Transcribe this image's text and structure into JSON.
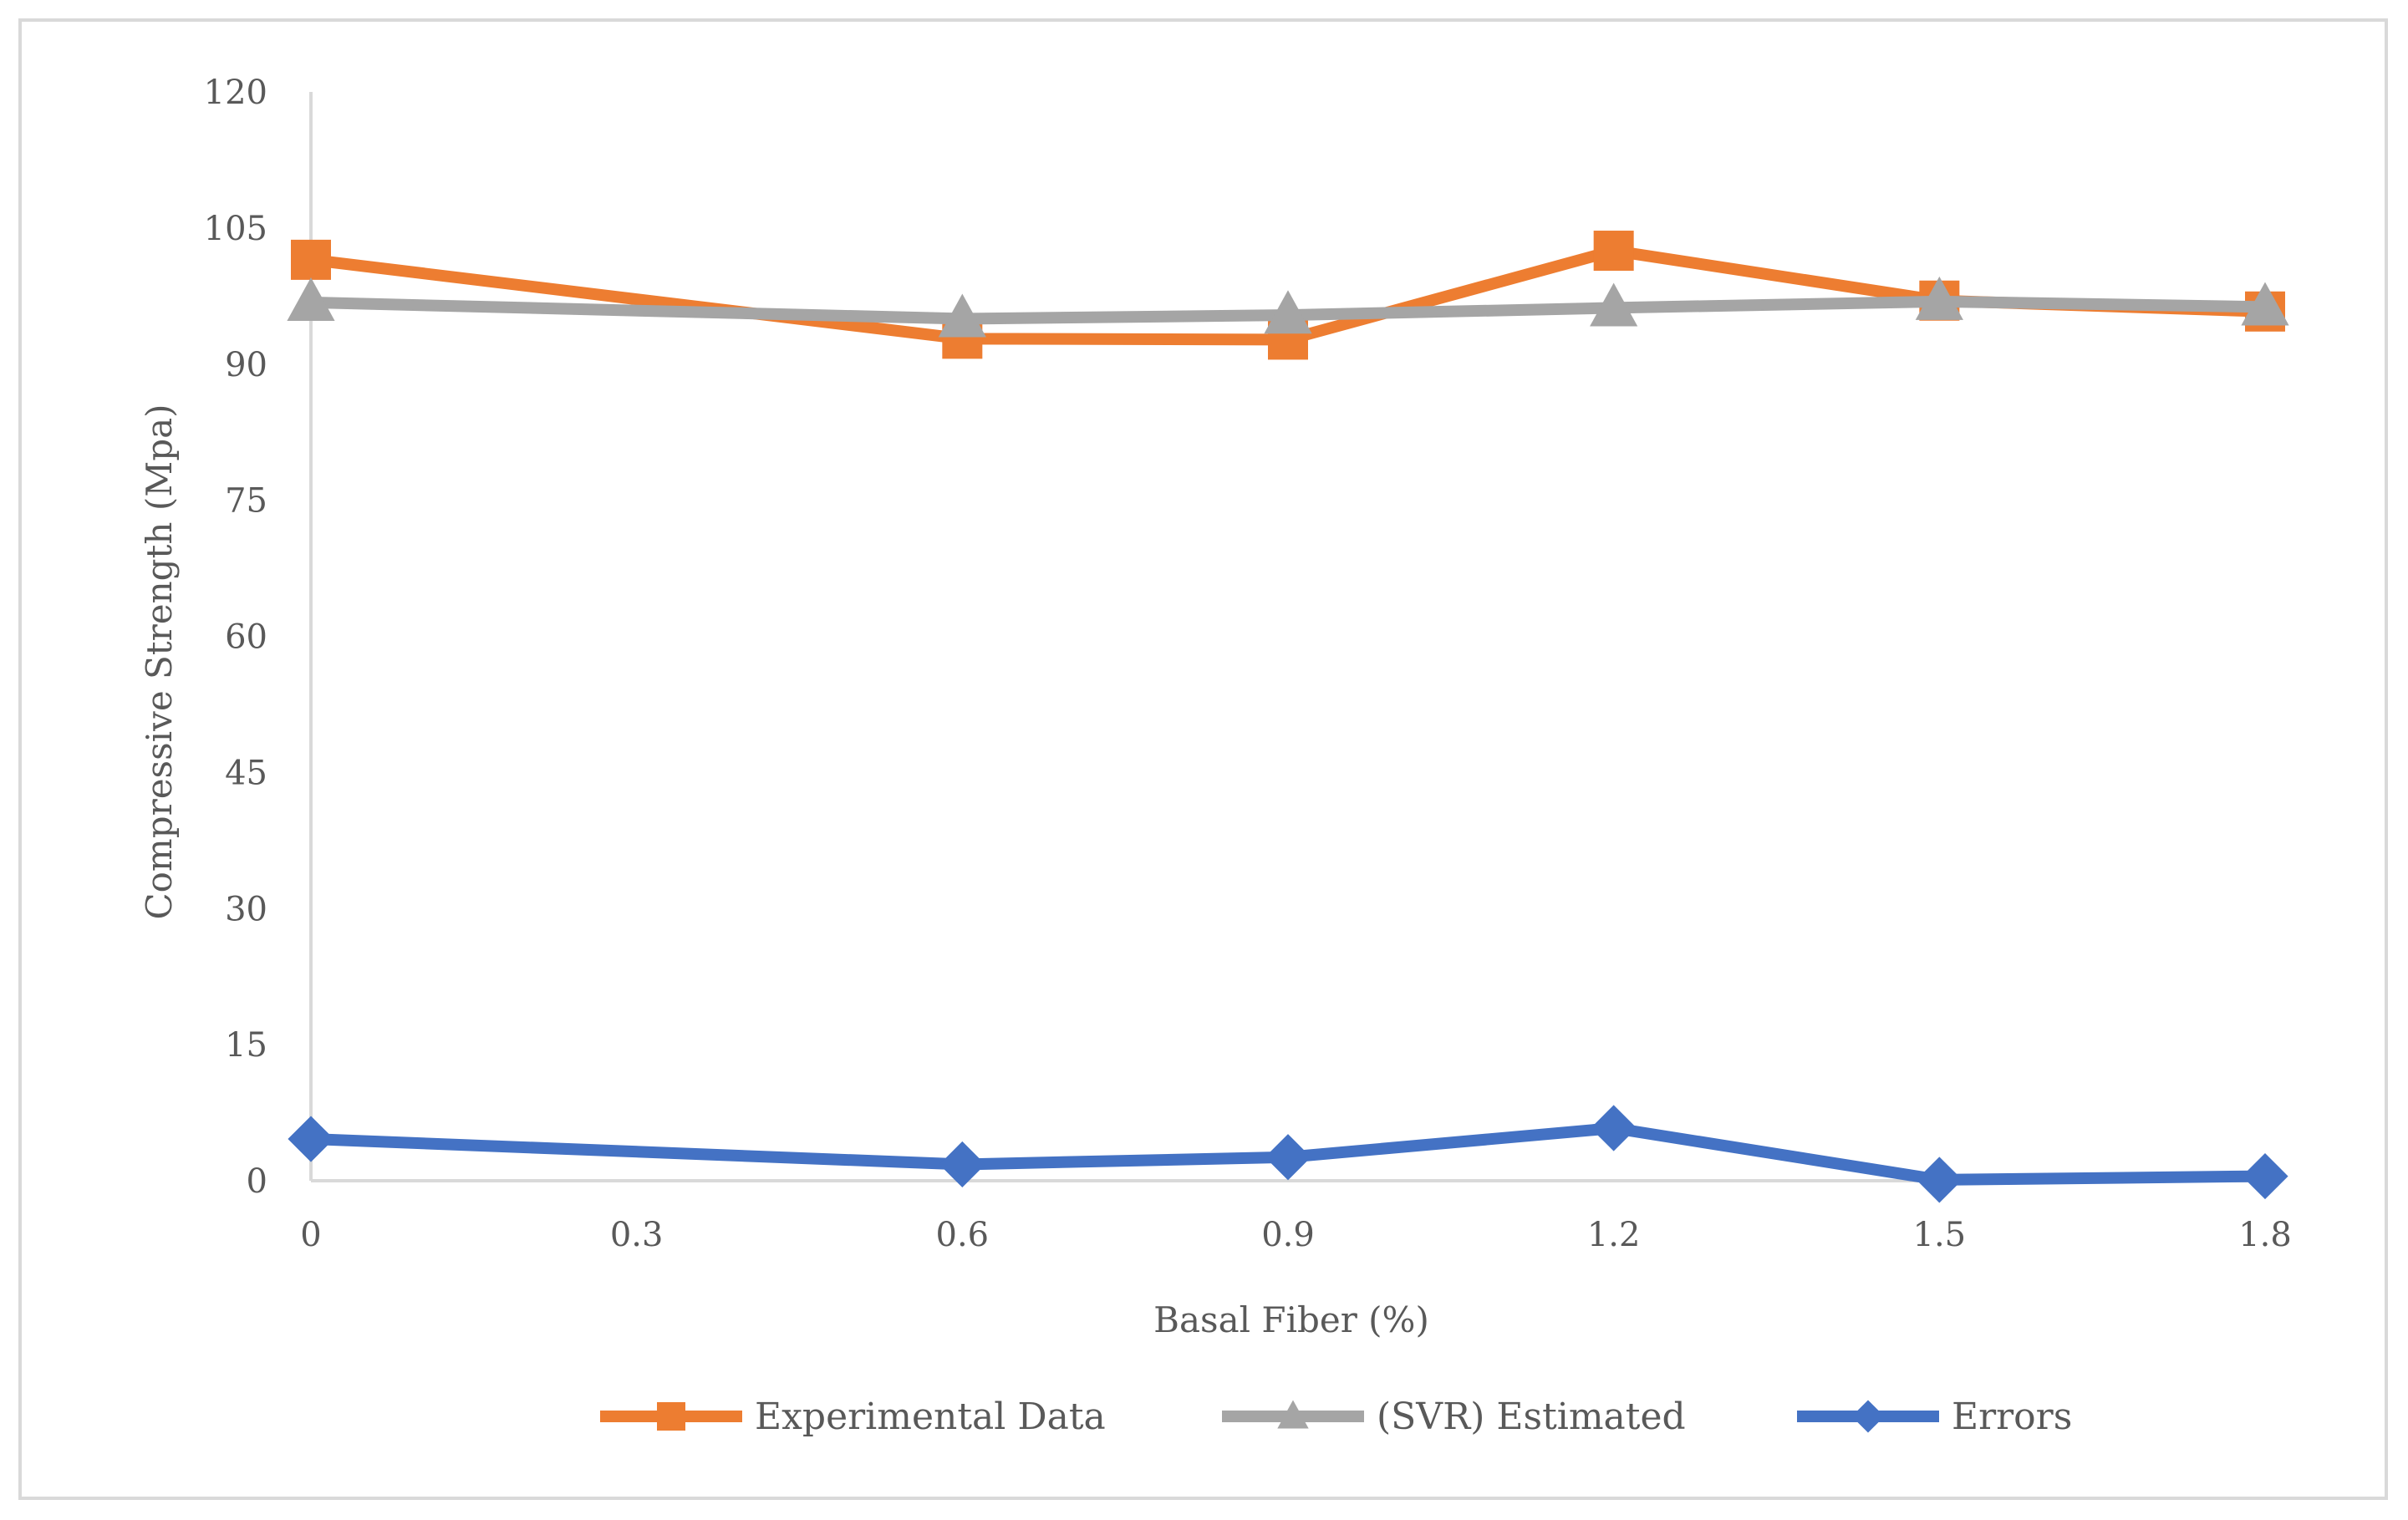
{
  "chart_data": {
    "type": "line",
    "title": "",
    "xlabel": "Basal Fiber (%)",
    "ylabel": "Compressive Strength (Mpa)",
    "xlim": [
      0,
      1.8
    ],
    "ylim": [
      0,
      120
    ],
    "x_ticks": [
      "0",
      "0.3",
      "0.6",
      "0.9",
      "1.2",
      "1.5",
      "1.8"
    ],
    "y_ticks": [
      "0",
      "15",
      "30",
      "45",
      "60",
      "75",
      "90",
      "105",
      "120"
    ],
    "grid": false,
    "legend_position": "bottom",
    "series": [
      {
        "name": "Experimental Data",
        "color": "#ED7D31",
        "marker": "square",
        "x": [
          0,
          0.6,
          0.9,
          1.2,
          1.5,
          1.8
        ],
        "values": [
          101.5,
          92.8,
          92.7,
          102.5,
          97.0,
          95.8
        ]
      },
      {
        "name": "(SVR) Estimated",
        "color": "#A5A5A5",
        "marker": "triangle",
        "x": [
          0,
          0.6,
          0.9,
          1.2,
          1.5,
          1.8
        ],
        "values": [
          96.8,
          95.0,
          95.4,
          96.2,
          96.9,
          96.3
        ]
      },
      {
        "name": "Errors",
        "color": "#4472C4",
        "marker": "diamond",
        "x": [
          0,
          0.6,
          0.9,
          1.2,
          1.5,
          1.8
        ],
        "values": [
          4.6,
          1.8,
          2.6,
          5.8,
          0.1,
          0.5
        ]
      }
    ]
  }
}
